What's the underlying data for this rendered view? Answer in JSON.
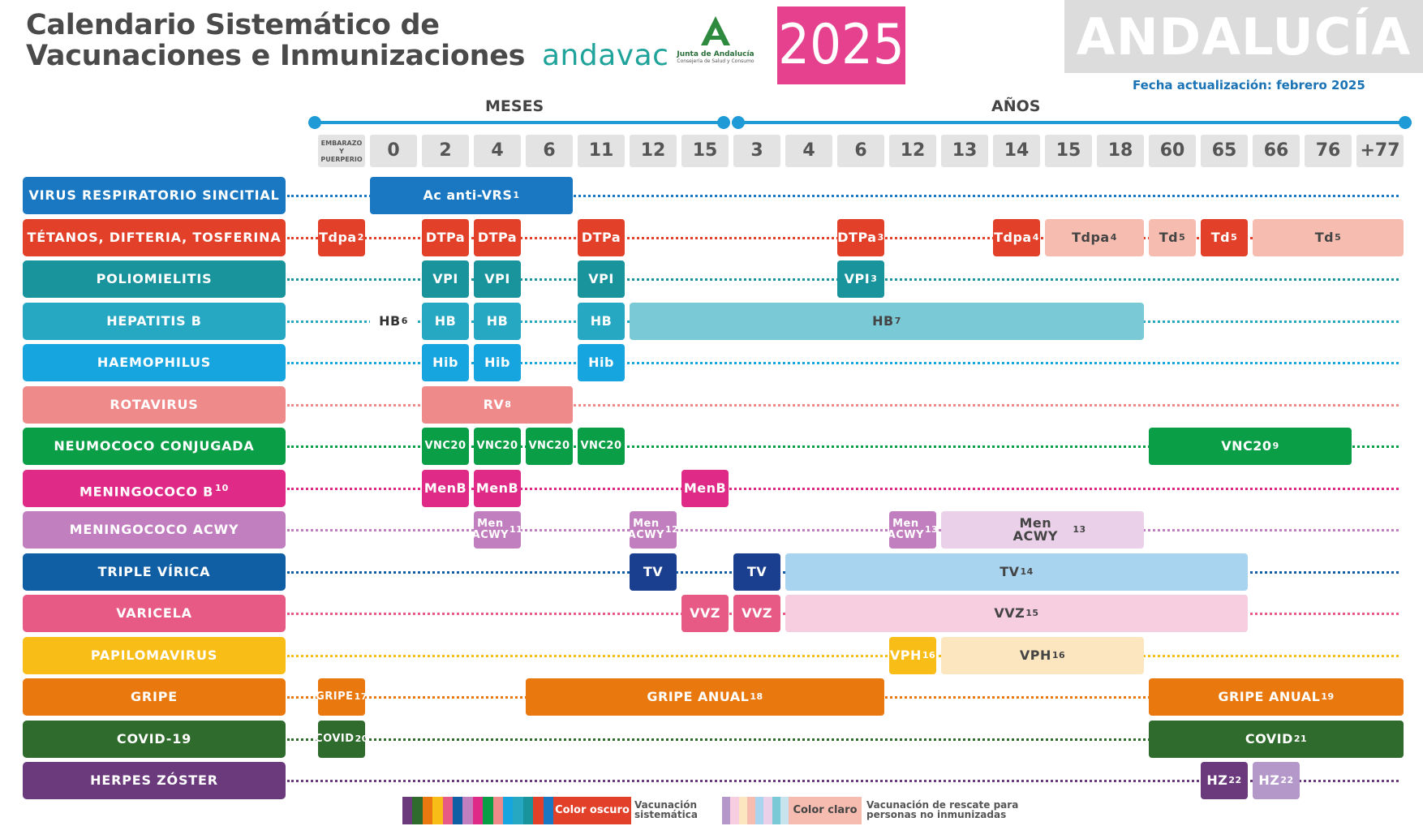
{
  "header": {
    "title_line1": "Calendario Sistemático de",
    "title_line2": "Vacunaciones e Inmunizaciones",
    "andavac_logo": "andavac",
    "junta_logo_text": "Junta de Andalucía",
    "junta_logo_sub": "Consejería de Salud y Consumo",
    "year": "2025",
    "region": "ANDALUCÍA",
    "update": "Fecha actualización: febrero 2025"
  },
  "timeline": {
    "months_label": "MESES",
    "years_label": "AÑOS"
  },
  "ages": [
    {
      "label": "EMBARAZO Y PUERPERIO",
      "small": true
    },
    {
      "label": "0"
    },
    {
      "label": "2"
    },
    {
      "label": "4"
    },
    {
      "label": "6"
    },
    {
      "label": "11"
    },
    {
      "label": "12"
    },
    {
      "label": "15"
    },
    {
      "label": "3"
    },
    {
      "label": "4"
    },
    {
      "label": "6"
    },
    {
      "label": "12"
    },
    {
      "label": "13"
    },
    {
      "label": "14"
    },
    {
      "label": "15"
    },
    {
      "label": "18"
    },
    {
      "label": "60"
    },
    {
      "label": "65"
    },
    {
      "label": "66"
    },
    {
      "label": "76"
    },
    {
      "label": "+77"
    }
  ],
  "vaccines": [
    {
      "label": "VIRUS RESPIRATORIO SINCITIAL",
      "color": "#1a78c2"
    },
    {
      "label": "TÉTANOS, DIFTERIA, TOSFERINA",
      "color": "#e3402a"
    },
    {
      "label": "POLIOMIELITIS",
      "color": "#19939c"
    },
    {
      "label": "HEPATITIS B",
      "color": "#27a8c2"
    },
    {
      "label": "HAEMOPHILUS",
      "color": "#17a5df"
    },
    {
      "label": "ROTAVIRUS",
      "color": "#ef8a8a"
    },
    {
      "label": "NEUMOCOCO CONJUGADA",
      "color": "#0a9e46"
    },
    {
      "label": "MENINGOCOCO B",
      "sup": "10",
      "color": "#e02a87"
    },
    {
      "label": "MENINGOCOCO ACWY",
      "color": "#c17fbf"
    },
    {
      "label": "TRIPLE VÍRICA",
      "color": "#105fa5"
    },
    {
      "label": "VARICELA",
      "color": "#e85a86"
    },
    {
      "label": "PAPILOMAVIRUS",
      "color": "#f9bd18"
    },
    {
      "label": "GRIPE",
      "color": "#e9780f"
    },
    {
      "label": "COVID-19",
      "color": "#2f6b2c"
    },
    {
      "label": "HERPES ZÓSTER",
      "color": "#6b3a7d"
    }
  ],
  "doses": [
    {
      "row": 0,
      "text": "Ac anti-VRS",
      "sup": "1",
      "from": 1,
      "to": 4,
      "color": "#1a78c2"
    },
    {
      "row": 1,
      "text": "Tdpa",
      "sup": "2",
      "from": 0,
      "to": 0,
      "color": "#e3402a"
    },
    {
      "row": 1,
      "text": "DTPa",
      "from": 2,
      "to": 2,
      "color": "#e3402a"
    },
    {
      "row": 1,
      "text": "DTPa",
      "from": 3,
      "to": 3,
      "color": "#e3402a"
    },
    {
      "row": 1,
      "text": "DTPa",
      "from": 5,
      "to": 5,
      "color": "#e3402a"
    },
    {
      "row": 1,
      "text": "DTPa",
      "sup": "3",
      "from": 10,
      "to": 10,
      "color": "#e3402a"
    },
    {
      "row": 1,
      "text": "Tdpa",
      "sup": "4",
      "from": 13,
      "to": 13,
      "color": "#e3402a"
    },
    {
      "row": 1,
      "text": "Tdpa",
      "sup": "4",
      "from": 14,
      "to": 15,
      "color": "#f6bcb0",
      "light": true
    },
    {
      "row": 1,
      "text": "Td",
      "sup": "5",
      "from": 16,
      "to": 16,
      "color": "#f6bcb0",
      "light": true
    },
    {
      "row": 1,
      "text": "Td",
      "sup": "5",
      "from": 17,
      "to": 17,
      "color": "#e3402a"
    },
    {
      "row": 1,
      "text": "Td",
      "sup": "5",
      "from": 18,
      "to": 20,
      "color": "#f6bcb0",
      "light": true
    },
    {
      "row": 2,
      "text": "VPI",
      "from": 2,
      "to": 2,
      "color": "#19939c"
    },
    {
      "row": 2,
      "text": "VPI",
      "from": 3,
      "to": 3,
      "color": "#19939c"
    },
    {
      "row": 2,
      "text": "VPI",
      "from": 5,
      "to": 5,
      "color": "#19939c"
    },
    {
      "row": 2,
      "text": "VPI",
      "sup": "3",
      "from": 10,
      "to": 10,
      "color": "#19939c"
    },
    {
      "row": 3,
      "text": "HB",
      "sup": "6",
      "from": 1,
      "to": 1,
      "color": "transparent",
      "plain": true
    },
    {
      "row": 3,
      "text": "HB",
      "from": 2,
      "to": 2,
      "color": "#27a8c2"
    },
    {
      "row": 3,
      "text": "HB",
      "from": 3,
      "to": 3,
      "color": "#27a8c2"
    },
    {
      "row": 3,
      "text": "HB",
      "from": 5,
      "to": 5,
      "color": "#27a8c2"
    },
    {
      "row": 3,
      "text": "HB",
      "sup": "7",
      "from": 6,
      "to": 15,
      "color": "#79c9d6",
      "light": true
    },
    {
      "row": 4,
      "text": "Hib",
      "from": 2,
      "to": 2,
      "color": "#17a5df"
    },
    {
      "row": 4,
      "text": "Hib",
      "from": 3,
      "to": 3,
      "color": "#17a5df"
    },
    {
      "row": 4,
      "text": "Hib",
      "from": 5,
      "to": 5,
      "color": "#17a5df"
    },
    {
      "row": 5,
      "text": "RV",
      "sup": "8",
      "from": 2,
      "to": 4,
      "color": "#ef8a8a"
    },
    {
      "row": 6,
      "text": "VNC20",
      "from": 2,
      "to": 2,
      "color": "#0a9e46"
    },
    {
      "row": 6,
      "text": "VNC20",
      "from": 3,
      "to": 3,
      "color": "#0a9e46"
    },
    {
      "row": 6,
      "text": "VNC20",
      "from": 4,
      "to": 4,
      "color": "#0a9e46"
    },
    {
      "row": 6,
      "text": "VNC20",
      "from": 5,
      "to": 5,
      "color": "#0a9e46"
    },
    {
      "row": 6,
      "text": "VNC20",
      "sup": "9",
      "from": 16,
      "to": 19,
      "color": "#0a9e46"
    },
    {
      "row": 7,
      "text": "MenB",
      "from": 2,
      "to": 2,
      "color": "#e02a87"
    },
    {
      "row": 7,
      "text": "MenB",
      "from": 3,
      "to": 3,
      "color": "#e02a87"
    },
    {
      "row": 7,
      "text": "MenB",
      "from": 7,
      "to": 7,
      "color": "#e02a87"
    },
    {
      "row": 8,
      "text": "Men ACWY",
      "sup": "11",
      "from": 3,
      "to": 3,
      "color": "#c17fbf"
    },
    {
      "row": 8,
      "text": "Men ACWY",
      "sup": "12",
      "from": 6,
      "to": 6,
      "color": "#c17fbf"
    },
    {
      "row": 8,
      "text": "Men ACWY",
      "sup": "13",
      "from": 11,
      "to": 11,
      "color": "#c17fbf"
    },
    {
      "row": 8,
      "text": "Men ACWY",
      "sup": "13",
      "from": 12,
      "to": 15,
      "color": "#ead0e8",
      "light": true
    },
    {
      "row": 9,
      "text": "TV",
      "from": 6,
      "to": 6,
      "color": "#1b3f8f"
    },
    {
      "row": 9,
      "text": "TV",
      "from": 8,
      "to": 8,
      "color": "#1b3f8f"
    },
    {
      "row": 9,
      "text": "TV",
      "sup": "14",
      "from": 9,
      "to": 17,
      "color": "#a9d4ef",
      "light": true
    },
    {
      "row": 10,
      "text": "VVZ",
      "from": 7,
      "to": 7,
      "color": "#e85a86"
    },
    {
      "row": 10,
      "text": "VVZ",
      "from": 8,
      "to": 8,
      "color": "#e85a86"
    },
    {
      "row": 10,
      "text": "VVZ",
      "sup": "15",
      "from": 9,
      "to": 17,
      "color": "#f7cde0",
      "light": true
    },
    {
      "row": 11,
      "text": "VPH",
      "sup": "16",
      "from": 11,
      "to": 11,
      "color": "#f9bd18"
    },
    {
      "row": 11,
      "text": "VPH",
      "sup": "16",
      "from": 12,
      "to": 15,
      "color": "#fbe6bf",
      "light": true
    },
    {
      "row": 12,
      "text": "GRIPE",
      "sup": "17",
      "from": 0,
      "to": 0,
      "color": "#e9780f"
    },
    {
      "row": 12,
      "text": "GRIPE ANUAL",
      "sup": "18",
      "from": 4,
      "to": 10,
      "color": "#e9780f"
    },
    {
      "row": 12,
      "text": "GRIPE ANUAL",
      "sup": "19",
      "from": 16,
      "to": 20,
      "color": "#e9780f"
    },
    {
      "row": 13,
      "text": "COVID",
      "sup": "20",
      "from": 0,
      "to": 0,
      "color": "#2f6b2c"
    },
    {
      "row": 13,
      "text": "COVID",
      "sup": "21",
      "from": 16,
      "to": 20,
      "color": "#2f6b2c"
    },
    {
      "row": 14,
      "text": "HZ",
      "sup": "22",
      "from": 17,
      "to": 17,
      "color": "#6b3a7d"
    },
    {
      "row": 14,
      "text": "HZ",
      "sup": "22",
      "from": 18,
      "to": 18,
      "color": "#b398c9"
    }
  ],
  "legend": {
    "dark_label": "Color oscuro",
    "dark_desc_1": "Vacunación",
    "dark_desc_2": "sistemática",
    "light_label": "Color claro",
    "light_desc_1": "Vacunación de rescate para",
    "light_desc_2": "personas no inmunizadas",
    "dark_colors": [
      "#6b3a7d",
      "#2f6b2c",
      "#e9780f",
      "#f9bd18",
      "#e85a86",
      "#105fa5",
      "#c17fbf",
      "#e02a87",
      "#0a9e46",
      "#ef8a8a",
      "#17a5df",
      "#27a8c2",
      "#19939c",
      "#e3402a",
      "#1a78c2"
    ],
    "light_colors": [
      "#b398c9",
      "#f7cde0",
      "#fbe6bf",
      "#f6bcb0",
      "#a9d4ef",
      "#ead0e8",
      "#79c9d6",
      "#c6e3ee"
    ]
  }
}
